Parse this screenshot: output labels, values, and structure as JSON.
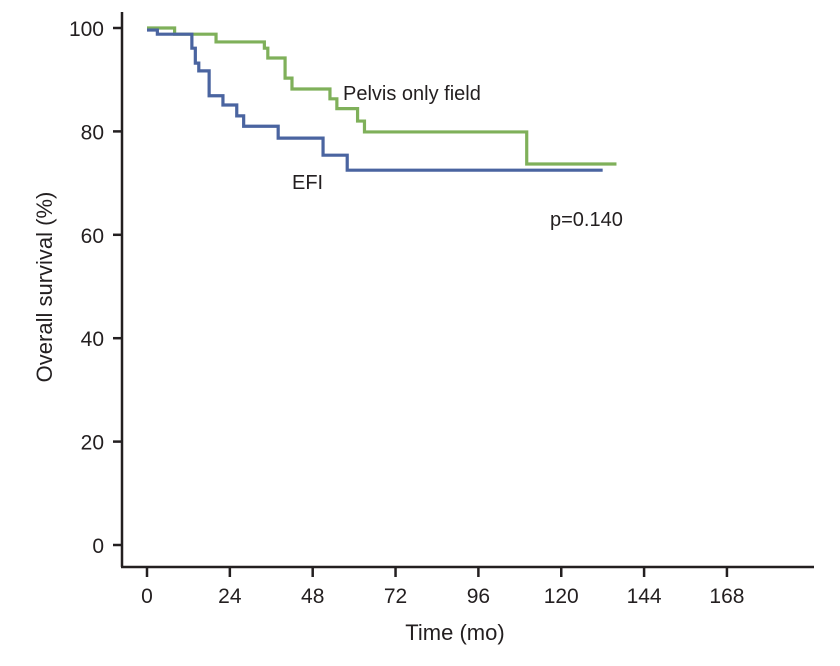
{
  "chart_data": {
    "type": "line",
    "subtype": "kaplan-meier-step",
    "title": "",
    "xlabel": "Time (mo)",
    "ylabel": "Overall survival (%)",
    "xlim": [
      0,
      192
    ],
    "ylim": [
      0,
      100
    ],
    "xticks": [
      0,
      24,
      48,
      72,
      96,
      120,
      144,
      168
    ],
    "xtick_labels": [
      "0",
      "24",
      "48",
      "72",
      "96",
      "120",
      "144",
      "168"
    ],
    "yticks": [
      0,
      20,
      40,
      60,
      80,
      100
    ],
    "ytick_labels": [
      "0",
      "20",
      "40",
      "60",
      "80",
      "100"
    ],
    "grid": false,
    "series": [
      {
        "name": "Pelvis only field",
        "color": "#7fb05a",
        "x": [
          0,
          8,
          20,
          34,
          35,
          40,
          42,
          53,
          55,
          61,
          63,
          110,
          136
        ],
        "y": [
          100,
          98.8,
          97.3,
          96.1,
          94.2,
          90.3,
          88.2,
          86.3,
          84.4,
          82.0,
          79.9,
          73.7,
          73.7
        ]
      },
      {
        "name": "EFI",
        "color": "#4a64a0",
        "x": [
          0,
          3,
          13,
          14,
          15,
          18,
          22,
          26,
          28,
          38,
          51,
          58,
          132
        ],
        "y": [
          99.6,
          98.8,
          96.1,
          93.2,
          91.7,
          86.9,
          85.1,
          83.0,
          81.0,
          78.7,
          75.4,
          72.5,
          72.5
        ]
      }
    ],
    "annotations": {
      "pelvis_label": "Pelvis only field",
      "efi_label": "EFI",
      "p_value": "p=0.140"
    }
  }
}
